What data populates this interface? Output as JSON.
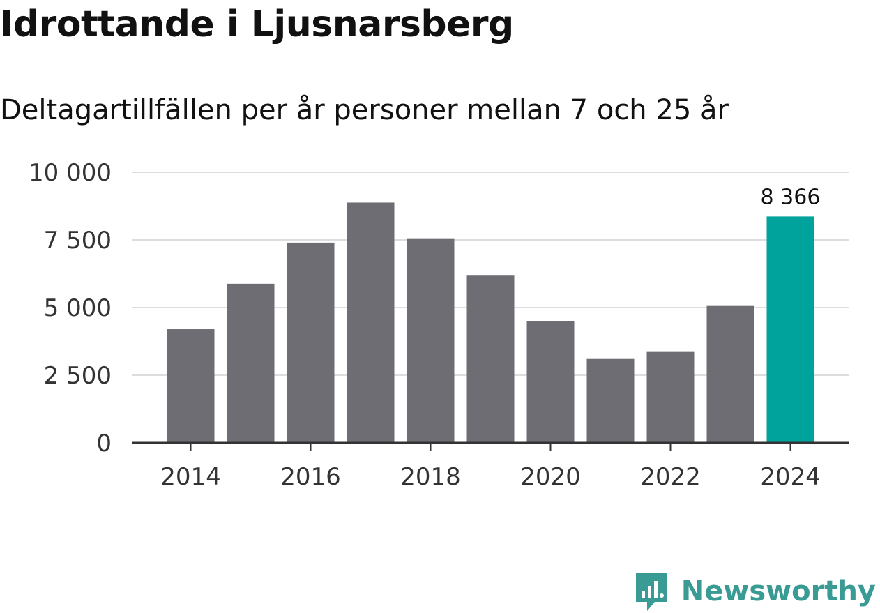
{
  "chart_data": {
    "type": "bar",
    "title": "Idrottande i Ljusnarsberg",
    "subtitle": "Deltagartillfällen per år personer mellan 7 och 25 år",
    "categories": [
      2014,
      2015,
      2016,
      2017,
      2018,
      2019,
      2020,
      2021,
      2022,
      2023,
      2024
    ],
    "values": [
      4200,
      5880,
      7400,
      8880,
      7560,
      6180,
      4500,
      3100,
      3360,
      5060,
      8366
    ],
    "highlight_index": 10,
    "highlight_label": "8 366",
    "yticks": [
      0,
      2500,
      5000,
      7500,
      10000
    ],
    "ytick_labels": [
      "0",
      "2 500",
      "5 000",
      "7 500",
      "10 000"
    ],
    "xtick_labels": [
      "2014",
      "2016",
      "2018",
      "2020",
      "2022",
      "2024"
    ],
    "ylim": [
      0,
      10000
    ],
    "xlabel": "",
    "ylabel": "",
    "grid": true,
    "colors": {
      "bar": "#6e6d74",
      "highlight": "#00a39b",
      "grid": "#dddddd",
      "axis": "#333333"
    }
  },
  "brand": {
    "name": "Newsworthy",
    "icon": "newsworthy-logo-icon",
    "color": "#3a9b94"
  }
}
